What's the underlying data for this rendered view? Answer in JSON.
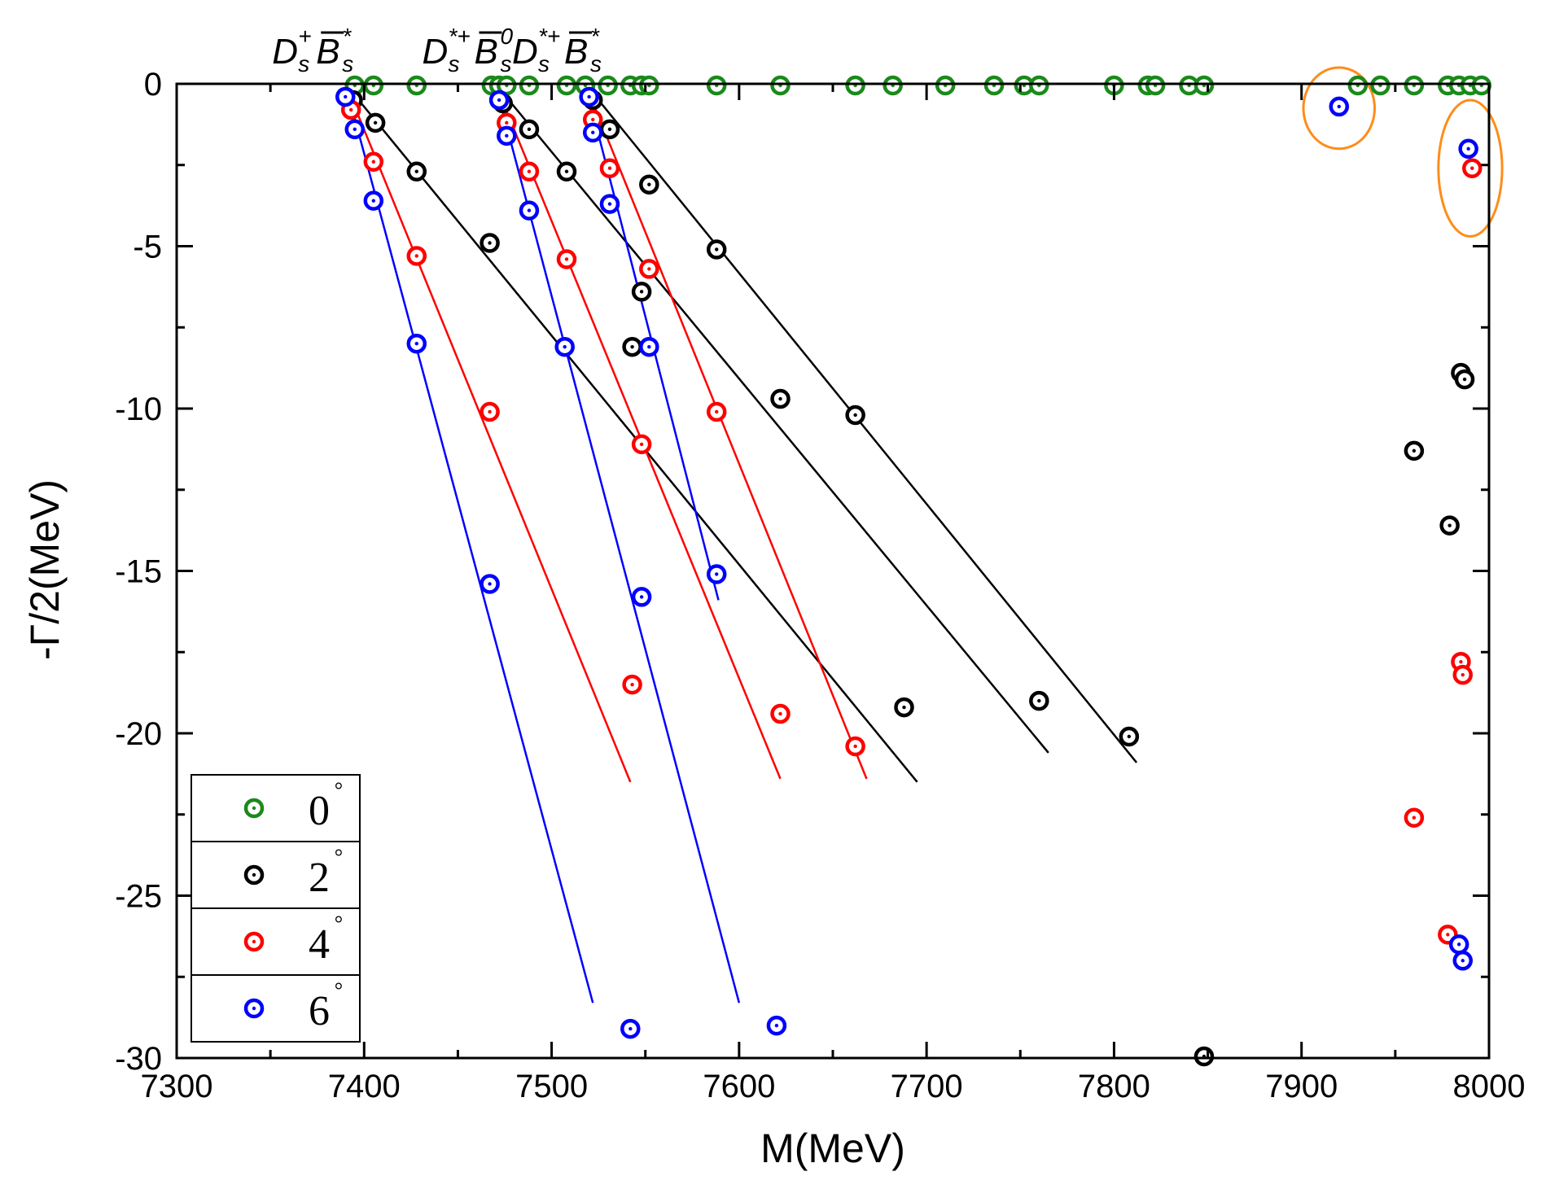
{
  "chart_data": {
    "type": "scatter",
    "title": "",
    "xlabel": "M(MeV)",
    "ylabel": "-Γ/2(MeV)",
    "xlim": [
      7300,
      8000
    ],
    "ylim": [
      -30,
      0
    ],
    "xticks": [
      7300,
      7400,
      7500,
      7600,
      7700,
      7800,
      7900,
      8000
    ],
    "yticks": [
      0,
      -5,
      -10,
      -15,
      -20,
      -25,
      -30
    ],
    "xtick_labels": [
      "7300",
      "7400",
      "7500",
      "7600",
      "7700",
      "7800",
      "7900",
      "8000"
    ],
    "ytick_labels": [
      "0",
      "-5",
      "-10",
      "-15",
      "-20",
      "-25",
      "-30"
    ],
    "thresholds": [
      {
        "x": 7390,
        "parts": [
          [
            "D",
            "main",
            ""
          ],
          [
            "s",
            "sub",
            ""
          ],
          [
            "+",
            "sup",
            ""
          ],
          [
            "B",
            "main",
            "bar"
          ],
          [
            "s",
            "sub",
            ""
          ],
          [
            "*",
            "sup",
            ""
          ]
        ]
      },
      {
        "x": 7470,
        "parts": [
          [
            "D",
            "main",
            ""
          ],
          [
            "s",
            "sub",
            ""
          ],
          [
            "*+",
            "sup",
            ""
          ],
          [
            "B",
            "main",
            "bar"
          ],
          [
            "s",
            "sub",
            ""
          ],
          [
            "0",
            "sup",
            ""
          ]
        ]
      },
      {
        "x": 7518,
        "parts": [
          [
            "D",
            "main",
            ""
          ],
          [
            "s",
            "sub",
            ""
          ],
          [
            "*+",
            "sup",
            ""
          ],
          [
            "B",
            "main",
            "bar"
          ],
          [
            "s",
            "sub",
            ""
          ],
          [
            "*",
            "sup",
            ""
          ]
        ]
      }
    ],
    "series": [
      {
        "name": "0°",
        "legend_number": "0",
        "legend_degree": "°",
        "color": "#1a8a1a",
        "points": [
          [
            7395,
            0
          ],
          [
            7405,
            0
          ],
          [
            7428,
            0
          ],
          [
            7468,
            0
          ],
          [
            7472,
            0
          ],
          [
            7476,
            0
          ],
          [
            7488,
            0
          ],
          [
            7508,
            0
          ],
          [
            7518,
            0
          ],
          [
            7530,
            0
          ],
          [
            7542,
            0
          ],
          [
            7548,
            0
          ],
          [
            7552,
            0
          ],
          [
            7588,
            0
          ],
          [
            7622,
            0
          ],
          [
            7662,
            0
          ],
          [
            7682,
            0
          ],
          [
            7710,
            0
          ],
          [
            7736,
            0
          ],
          [
            7752,
            0
          ],
          [
            7760,
            0
          ],
          [
            7800,
            0
          ],
          [
            7818,
            0
          ],
          [
            7822,
            0
          ],
          [
            7840,
            0
          ],
          [
            7848,
            0
          ],
          [
            7930,
            0
          ],
          [
            7942,
            0
          ],
          [
            7960,
            0
          ],
          [
            7978,
            0
          ],
          [
            7984,
            0
          ],
          [
            7990,
            0
          ],
          [
            7996,
            0
          ]
        ],
        "lines": []
      },
      {
        "name": "2°",
        "legend_number": "2",
        "legend_degree": "°",
        "color": "#000000",
        "points": [
          [
            7394,
            -0.5
          ],
          [
            7406,
            -1.2
          ],
          [
            7428,
            -2.7
          ],
          [
            7467,
            -4.9
          ],
          [
            7474,
            -0.6
          ],
          [
            7488,
            -1.4
          ],
          [
            7508,
            -2.7
          ],
          [
            7522,
            -0.5
          ],
          [
            7531,
            -1.4
          ],
          [
            7552,
            -3.1
          ],
          [
            7588,
            -5.1
          ],
          [
            7543,
            -8.1
          ],
          [
            7548,
            -6.4
          ],
          [
            7622,
            -9.7
          ],
          [
            7662,
            -10.2
          ],
          [
            7688,
            -19.2
          ],
          [
            7760,
            -19.0
          ],
          [
            7808,
            -20.1
          ],
          [
            7848,
            -30.0
          ],
          [
            7960,
            -11.3
          ],
          [
            7979,
            -13.6
          ],
          [
            7985,
            -8.9
          ],
          [
            7987,
            -9.1
          ]
        ],
        "lines": [
          [
            [
              7390,
              0
            ],
            [
              7695,
              -21.5
            ]
          ],
          [
            [
              7470,
              0
            ],
            [
              7765,
              -20.6
            ]
          ],
          [
            [
              7518,
              0
            ],
            [
              7812,
              -20.9
            ]
          ]
        ]
      },
      {
        "name": "4°",
        "legend_number": "4",
        "legend_degree": "°",
        "color": "#ff0000",
        "points": [
          [
            7393,
            -0.8
          ],
          [
            7405,
            -2.4
          ],
          [
            7428,
            -5.3
          ],
          [
            7467,
            -10.1
          ],
          [
            7476,
            -1.2
          ],
          [
            7488,
            -2.7
          ],
          [
            7508,
            -5.4
          ],
          [
            7548,
            -11.1
          ],
          [
            7543,
            -18.5
          ],
          [
            7522,
            -1.1
          ],
          [
            7531,
            -2.6
          ],
          [
            7552,
            -5.7
          ],
          [
            7588,
            -10.1
          ],
          [
            7622,
            -19.4
          ],
          [
            7662,
            -20.4
          ],
          [
            7960,
            -22.6
          ],
          [
            7978,
            -26.2
          ],
          [
            7985,
            -17.8
          ],
          [
            7986,
            -18.2
          ],
          [
            7991,
            -2.6
          ]
        ],
        "lines": [
          [
            [
              7390,
              0
            ],
            [
              7542,
              -21.5
            ]
          ],
          [
            [
              7470,
              0
            ],
            [
              7622,
              -21.4
            ]
          ],
          [
            [
              7518,
              0
            ],
            [
              7668,
              -21.4
            ]
          ]
        ]
      },
      {
        "name": "6°",
        "legend_number": "6",
        "legend_degree": "°",
        "color": "#0000ff",
        "points": [
          [
            7390,
            -0.4
          ],
          [
            7395,
            -1.4
          ],
          [
            7405,
            -3.6
          ],
          [
            7428,
            -8.0
          ],
          [
            7467,
            -15.4
          ],
          [
            7472,
            -0.5
          ],
          [
            7476,
            -1.6
          ],
          [
            7488,
            -3.9
          ],
          [
            7507,
            -8.1
          ],
          [
            7548,
            -15.8
          ],
          [
            7542,
            -29.1
          ],
          [
            7520,
            -0.4
          ],
          [
            7522,
            -1.5
          ],
          [
            7531,
            -3.7
          ],
          [
            7552,
            -8.1
          ],
          [
            7588,
            -15.1
          ],
          [
            7620,
            -29.0
          ],
          [
            7920,
            -0.7
          ],
          [
            7989,
            -2.0
          ],
          [
            7984,
            -26.5
          ],
          [
            7986,
            -27.0
          ]
        ],
        "lines": [
          [
            [
              7390,
              0
            ],
            [
              7522,
              -28.3
            ]
          ],
          [
            [
              7470,
              0
            ],
            [
              7600,
              -28.3
            ]
          ],
          [
            [
              7518,
              0
            ],
            [
              7589,
              -15.9
            ]
          ]
        ]
      }
    ],
    "highlights": [
      {
        "cx": 7920,
        "cy": -0.75,
        "rx": 19,
        "ry": 1.25,
        "color": "#ff8c1a"
      },
      {
        "cx": 7990,
        "cy": -2.6,
        "rx": 17,
        "ry": 2.1,
        "color": "#ff8c1a"
      }
    ],
    "legend": {
      "position": "bottom-left"
    }
  }
}
